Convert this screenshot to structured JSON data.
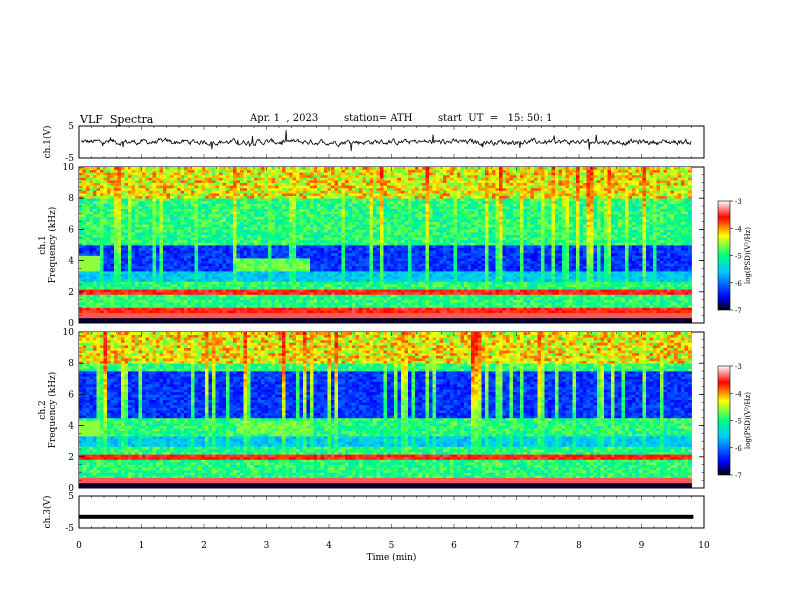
{
  "header": {
    "title": "VLF  Spectra",
    "date": "Apr. 1  , 2023",
    "station": "station= ATH",
    "start": "start  UT  =   15: 50: 1"
  },
  "chart_data": [
    {
      "type": "line",
      "panel": "ch1-waveform",
      "ylabel": "ch.1(V)",
      "ylim": [
        -5,
        5
      ],
      "yticks": [
        5,
        -5
      ],
      "xlim": [
        0,
        10
      ],
      "baseline": 0
    },
    {
      "type": "heatmap",
      "panel": "ch1-spectrogram",
      "ylabel": "ch.1\nFrequency  (kHz)",
      "ylim": [
        0,
        10
      ],
      "yticks": [
        10,
        8,
        6,
        4,
        2,
        0
      ],
      "xlim": [
        0,
        10
      ],
      "data_end_min": 9.8,
      "colorbar": {
        "label": "log(PSD)(V²/Hz)",
        "range": [
          -7,
          -3
        ],
        "ticks": [
          -3,
          -4,
          -5,
          -6,
          -7
        ],
        "colors": [
          "#000000",
          "#0000ff",
          "#00c8ff",
          "#00ff80",
          "#ffff00",
          "#ff0000",
          "#ffffff"
        ]
      },
      "features": {
        "quiet_band_khz": [
          3.2,
          5.0
        ],
        "enhanced_band_interval_min": [
          2.5,
          3.7
        ],
        "enhanced_band_khz": [
          3.4,
          4.2
        ],
        "strong_lines_khz": [
          0.8,
          2.0
        ]
      }
    },
    {
      "type": "heatmap",
      "panel": "ch2-spectrogram",
      "ylabel": "ch.2\nFrequency  (kHz)",
      "ylim": [
        0,
        10
      ],
      "yticks": [
        10,
        8,
        6,
        4,
        2,
        0
      ],
      "xlim": [
        0,
        10
      ],
      "data_end_min": 9.8,
      "colorbar": {
        "label": "log(PSD)(V²/Hz)",
        "range": [
          -7,
          -3
        ],
        "ticks": [
          -3,
          -4,
          -5,
          -6,
          -7
        ]
      },
      "features": {
        "quiet_band_khz": [
          4.5,
          7.5
        ],
        "enhanced_band_interval_min": [
          2.5,
          3.7
        ],
        "enhanced_band_khz": [
          3.5,
          4.3
        ],
        "strong_lines_khz": [
          2.0
        ]
      }
    },
    {
      "type": "line",
      "panel": "ch3-waveform",
      "ylabel": "ch.3(V)",
      "ylim": [
        -5,
        5
      ],
      "yticks": [
        5,
        -5
      ],
      "xlim": [
        0,
        10
      ],
      "xticks": [
        0,
        1,
        2,
        3,
        4,
        5,
        6,
        7,
        8,
        9,
        10
      ],
      "xlabel": "Time  (min)",
      "baseline": -1.5
    }
  ]
}
